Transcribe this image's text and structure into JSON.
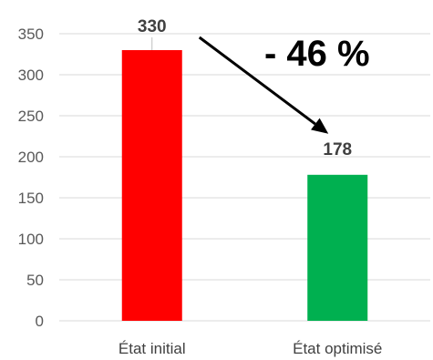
{
  "chart_data": {
    "type": "bar",
    "categories": [
      "État initial",
      "État optimisé"
    ],
    "values": [
      330,
      178
    ],
    "data_labels": [
      "330",
      "178"
    ],
    "bar_colors": [
      "#ff0000",
      "#00b050"
    ],
    "ylim": [
      0,
      350
    ],
    "yticks": [
      0,
      50,
      100,
      150,
      200,
      250,
      300,
      350
    ],
    "ytick_labels": [
      "0",
      "50",
      "100",
      "150",
      "200",
      "250",
      "300",
      "350"
    ],
    "grid": true,
    "legend": "none",
    "annotation": {
      "text": "- 46 %",
      "arrow": {
        "from_category": 0,
        "to_category": 1
      }
    }
  }
}
